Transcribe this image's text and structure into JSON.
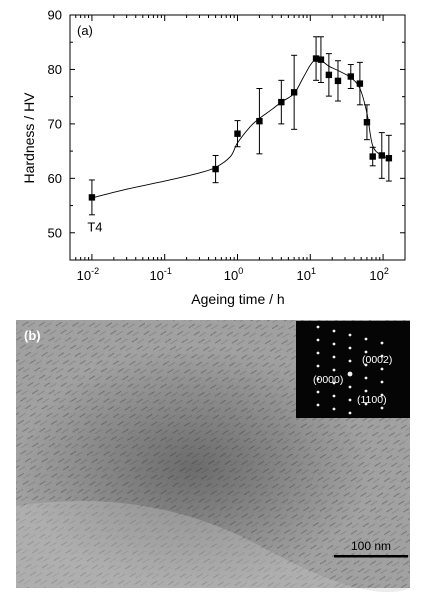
{
  "chart_data": {
    "type": "scatter",
    "panel_label": "(a)",
    "xlabel": "Ageing time / h",
    "ylabel": "Hardness / HV",
    "xscale": "log",
    "xlim": [
      0.005,
      200
    ],
    "ylim": [
      45,
      90
    ],
    "y_ticks": [
      50,
      60,
      70,
      80,
      90
    ],
    "x_ticks": [
      {
        "value": 0.01,
        "base": "10",
        "exp": "-2"
      },
      {
        "value": 0.1,
        "base": "10",
        "exp": "-1"
      },
      {
        "value": 1,
        "base": "10",
        "exp": "0"
      },
      {
        "value": 10,
        "base": "10",
        "exp": "1"
      },
      {
        "value": 100,
        "base": "10",
        "exp": "2"
      }
    ],
    "annotations": [
      {
        "text": "T4",
        "x": 0.01,
        "y": 51
      }
    ],
    "series": [
      {
        "marker": "square",
        "color": "#000000",
        "points": [
          {
            "x": 0.01,
            "y": 56.5,
            "err": 3.2
          },
          {
            "x": 0.5,
            "y": 61.7,
            "err": 2.5
          },
          {
            "x": 1.0,
            "y": 68.2,
            "err": 2.4
          },
          {
            "x": 2.0,
            "y": 70.5,
            "err": 6.0
          },
          {
            "x": 4.0,
            "y": 74.0,
            "err": 4.0
          },
          {
            "x": 6.0,
            "y": 75.8,
            "err": 6.8
          },
          {
            "x": 12.0,
            "y": 82.0,
            "err": 4.0
          },
          {
            "x": 14.0,
            "y": 81.8,
            "err": 4.2
          },
          {
            "x": 18.0,
            "y": 79.0,
            "err": 3.9
          },
          {
            "x": 24.0,
            "y": 77.9,
            "err": 3.7
          },
          {
            "x": 36.0,
            "y": 78.7,
            "err": 2.2
          },
          {
            "x": 48.0,
            "y": 77.4,
            "err": 3.9
          },
          {
            "x": 60.0,
            "y": 70.3,
            "err": 3.2
          },
          {
            "x": 72.0,
            "y": 64.0,
            "err": 1.7
          },
          {
            "x": 96.0,
            "y": 64.2,
            "err": 4.2
          },
          {
            "x": 120.0,
            "y": 63.7,
            "err": 4.2
          }
        ]
      }
    ],
    "fit_curve": [
      [
        0.01,
        56.4
      ],
      [
        0.03,
        58.0
      ],
      [
        0.1,
        59.5
      ],
      [
        0.3,
        61.0
      ],
      [
        0.5,
        62.0
      ],
      [
        0.8,
        64.0
      ],
      [
        1.0,
        66.5
      ],
      [
        1.5,
        69.5
      ],
      [
        2.0,
        71.0
      ],
      [
        3.0,
        72.7
      ],
      [
        4.0,
        74.0
      ],
      [
        6.0,
        75.6
      ],
      [
        8.0,
        78.5
      ],
      [
        10.0,
        80.8
      ],
      [
        12.0,
        81.9
      ],
      [
        14.0,
        81.7
      ],
      [
        18.0,
        80.6
      ],
      [
        24.0,
        79.8
      ],
      [
        36.0,
        78.5
      ],
      [
        48.0,
        76.5
      ],
      [
        60.0,
        72.0
      ],
      [
        72.0,
        66.0
      ],
      [
        96.0,
        64.2
      ],
      [
        120.0,
        63.7
      ]
    ]
  },
  "micrograph": {
    "panel_label": "(b)",
    "diffraction_labels": [
      "(0002)",
      "(0000)",
      "(1100)"
    ],
    "scale_bar": "100 nm"
  }
}
